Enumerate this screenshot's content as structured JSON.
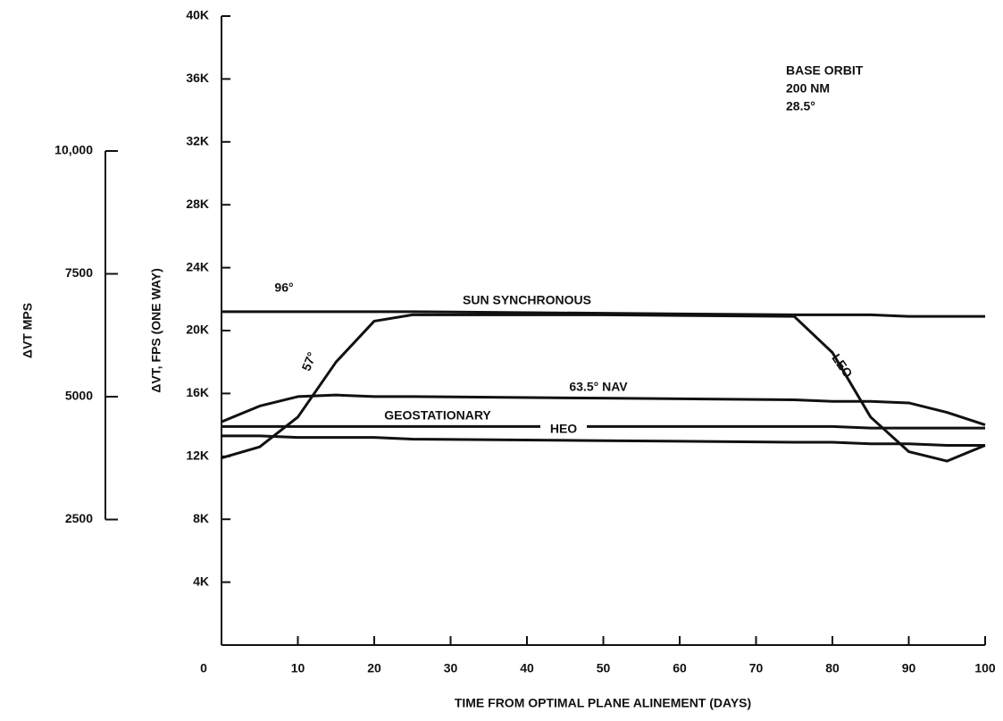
{
  "chart_data": {
    "type": "line",
    "annotations": [
      "BASE ORBIT",
      "200 NM",
      "28.5°",
      "96°",
      "57°"
    ],
    "xlabel": "TIME FROM OPTIMAL PLANE ALINEMENT (DAYS)",
    "ylabel": "ΔVT, FPS (ONE WAY)",
    "y2label": "ΔVT MPS",
    "x": [
      0,
      5,
      10,
      15,
      20,
      25,
      50,
      75,
      80,
      85,
      90,
      95,
      100
    ],
    "xlim": [
      0,
      100
    ],
    "xticks": [
      0,
      10,
      20,
      30,
      40,
      50,
      60,
      70,
      80,
      90,
      100
    ],
    "ylim": [
      0,
      40000
    ],
    "yticks": [
      {
        "value": 4000,
        "label": "4K"
      },
      {
        "value": 8000,
        "label": "8K"
      },
      {
        "value": 12000,
        "label": "12K"
      },
      {
        "value": 16000,
        "label": "16K"
      },
      {
        "value": 20000,
        "label": "20K"
      },
      {
        "value": 24000,
        "label": "24K"
      },
      {
        "value": 28000,
        "label": "28K"
      },
      {
        "value": 32000,
        "label": "32K"
      },
      {
        "value": 36000,
        "label": "36K"
      },
      {
        "value": 40000,
        "label": "40K"
      }
    ],
    "y2lim": [
      0,
      12800
    ],
    "y2ticks": [
      2500,
      5000,
      7500,
      {
        "value": 10000,
        "label": "10,000"
      }
    ],
    "series": [
      {
        "name": "SUN SYNCHRONOUS",
        "color": "#111111",
        "values": [
          21200,
          21200,
          21200,
          21200,
          21200,
          21200,
          21100,
          21000,
          21000,
          21000,
          20900,
          20900,
          20900
        ]
      },
      {
        "name": "LEO",
        "color": "#111111",
        "values": [
          11900,
          12600,
          14500,
          18000,
          20600,
          21000,
          21000,
          20900,
          18600,
          14500,
          12300,
          11700,
          12700
        ]
      },
      {
        "name": "63.5° NAV",
        "color": "#111111",
        "values": [
          14200,
          15200,
          15800,
          15900,
          15800,
          15800,
          15700,
          15600,
          15500,
          15500,
          15400,
          14800,
          14000
        ]
      },
      {
        "name": "GEOSTATIONARY",
        "color": "#111111",
        "values": [
          13900,
          13900,
          13900,
          13900,
          13900,
          13900,
          13900,
          13900,
          13900,
          13800,
          13800,
          13800,
          13800
        ]
      },
      {
        "name": "HEO",
        "color": "#111111",
        "values": [
          13300,
          13300,
          13200,
          13200,
          13200,
          13100,
          13000,
          12900,
          12900,
          12800,
          12800,
          12700,
          12700
        ]
      }
    ]
  }
}
